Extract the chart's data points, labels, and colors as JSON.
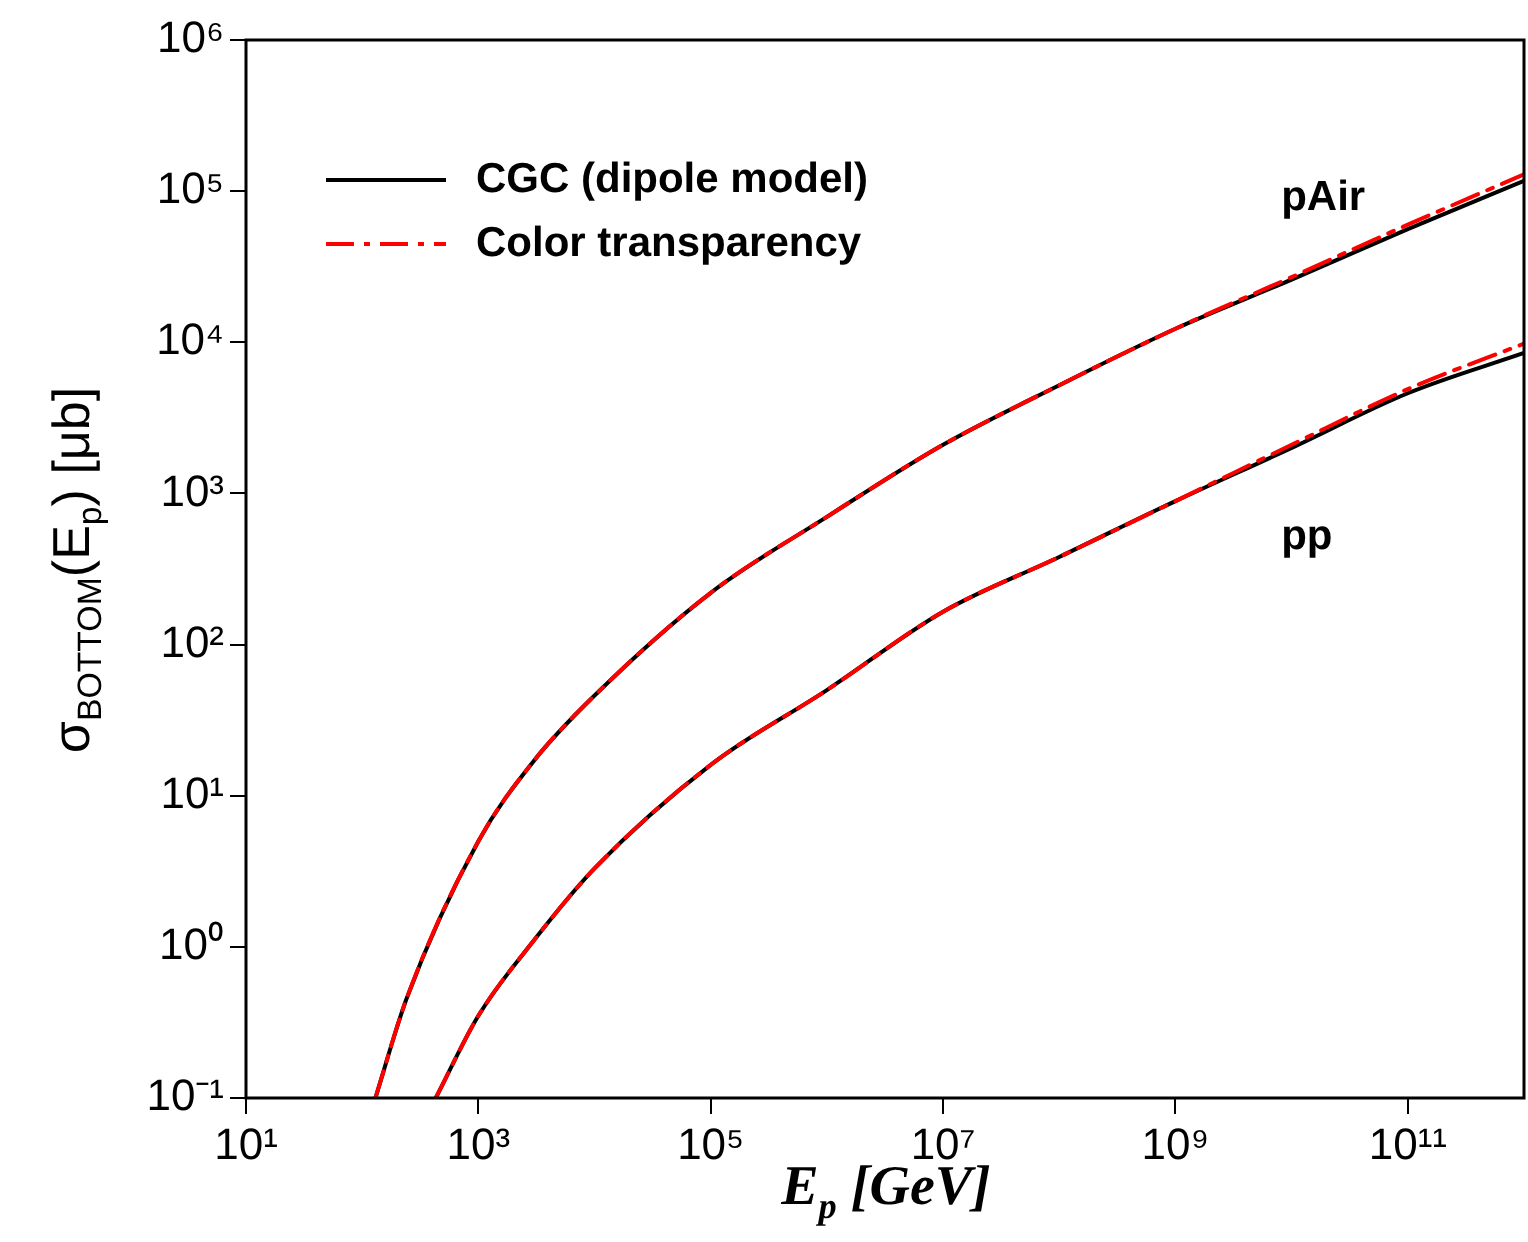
{
  "chart_data": {
    "type": "line",
    "xlabel": "E$_{p}$ [GeV]",
    "ylabel": "σ$_{BOTTOM}$(E$_{p}$) [μb]",
    "log": "xy",
    "xlim": [
      10,
      1000000000000.0
    ],
    "ylim": [
      0.1,
      1000000
    ],
    "xticks": [
      {
        "value": 10,
        "label": "10¹"
      },
      {
        "value": 1000,
        "label": "10³"
      },
      {
        "value": 100000,
        "label": "10⁵"
      },
      {
        "value": 10000000,
        "label": "10⁷"
      },
      {
        "value": 1000000000,
        "label": "10⁹"
      },
      {
        "value": 100000000000,
        "label": "10¹¹"
      }
    ],
    "yticks": [
      {
        "value": 0.1,
        "label": "10⁻¹"
      },
      {
        "value": 1,
        "label": "10⁰"
      },
      {
        "value": 10,
        "label": "10¹"
      },
      {
        "value": 100,
        "label": "10²"
      },
      {
        "value": 1000,
        "label": "10³"
      },
      {
        "value": 10000,
        "label": "10⁴"
      },
      {
        "value": 100000,
        "label": "10⁵"
      },
      {
        "value": 1000000,
        "label": "10⁶"
      }
    ],
    "grid": false,
    "legend": "top left",
    "marker": "none",
    "series": [
      {
        "name": "CGC (dipole model)",
        "color": "#000000",
        "line_style": "solid",
        "x": [
          130,
          240,
          1000,
          3000,
          10000,
          100000,
          1000000,
          10000000,
          100000000,
          1000000000,
          10000000000,
          100000000000,
          1000000000000
        ],
        "values": [
          0.1,
          0.45,
          5,
          17,
          46,
          220,
          700,
          2100,
          5200,
          12300,
          26000,
          56000,
          117000
        ]
      },
      {
        "name": "Color transparency",
        "color": "#ff0000",
        "line_style": "dashed",
        "x": [
          130,
          240,
          1000,
          3000,
          10000,
          100000,
          1000000,
          10000000,
          100000000,
          1000000000,
          10000000000,
          100000000000,
          1000000000000
        ],
        "values": [
          0.1,
          0.45,
          5,
          17,
          46,
          220,
          700,
          2100,
          5200,
          12300,
          27000,
          60000,
          129000
        ]
      },
      {
        "color": "#000000",
        "line_style": "solid",
        "x": [
          430,
          1000,
          3000,
          10000,
          100000,
          1000000,
          10000000,
          100000000,
          1000000000,
          10000000000,
          100000000000,
          1000000000000
        ],
        "values": [
          0.1,
          0.35,
          1.1,
          3.3,
          16,
          50,
          165,
          380,
          890,
          2000,
          4600,
          8500
        ]
      },
      {
        "color": "#ff0000",
        "line_style": "dashed",
        "x": [
          430,
          1000,
          3000,
          10000,
          100000,
          1000000,
          10000000,
          100000000,
          1000000000,
          10000000000,
          100000000000,
          1000000000000
        ],
        "values": [
          0.1,
          0.35,
          1.1,
          3.3,
          16,
          50,
          165,
          380,
          890,
          2100,
          4900,
          9800
        ]
      }
    ],
    "annotations": [
      "pAir",
      "pp"
    ]
  }
}
